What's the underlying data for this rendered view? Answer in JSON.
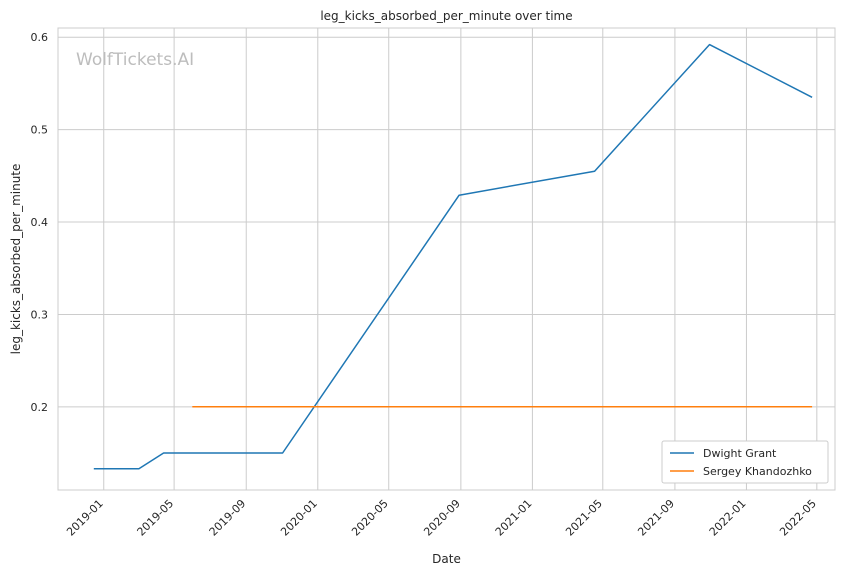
{
  "chart_data": {
    "type": "line",
    "title": "leg_kicks_absorbed_per_minute over time",
    "xlabel": "Date",
    "ylabel": "leg_kicks_absorbed_per_minute",
    "watermark": "WolfTickets.AI",
    "x_ticks": [
      "2019-01",
      "2019-05",
      "2019-09",
      "2020-01",
      "2020-05",
      "2020-09",
      "2021-01",
      "2021-05",
      "2021-09",
      "2022-01",
      "2022-05"
    ],
    "y_ticks": [
      "0.2",
      "0.3",
      "0.4",
      "0.5",
      "0.6"
    ],
    "xlim": [
      "2018-10-15",
      "2022-06-01"
    ],
    "ylim": [
      0.11,
      0.61
    ],
    "grid": true,
    "legend_position": "bottom-right",
    "series": [
      {
        "name": "Dwight Grant",
        "color": "#1f77b4",
        "points": [
          {
            "x": "2018-12-15",
            "y": 0.133
          },
          {
            "x": "2019-03-02",
            "y": 0.133
          },
          {
            "x": "2019-04-13",
            "y": 0.15
          },
          {
            "x": "2019-11-02",
            "y": 0.15
          },
          {
            "x": "2020-08-29",
            "y": 0.429
          },
          {
            "x": "2021-04-17",
            "y": 0.455
          },
          {
            "x": "2021-10-30",
            "y": 0.592
          },
          {
            "x": "2022-04-23",
            "y": 0.535
          }
        ]
      },
      {
        "name": "Sergey Khandozhko",
        "color": "#ff7f0e",
        "points": [
          {
            "x": "2019-06-01",
            "y": 0.2
          },
          {
            "x": "2022-04-23",
            "y": 0.2
          }
        ]
      }
    ]
  }
}
